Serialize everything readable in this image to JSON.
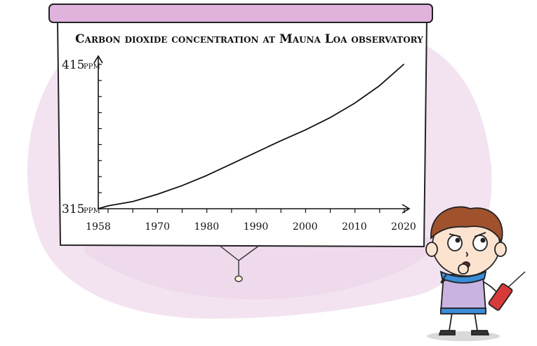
{
  "chart_data": {
    "type": "line",
    "title": "Carbon dioxide concentration at Mauna Loa observatory",
    "x_ticks": [
      "1958",
      "1970",
      "1980",
      "1990",
      "2000",
      "2010",
      "2020"
    ],
    "y_ticks": [
      {
        "value": "415",
        "unit": "ppm"
      },
      {
        "value": "315",
        "unit": "ppm"
      }
    ],
    "xlim": [
      1958,
      2021
    ],
    "ylim": [
      315,
      415
    ],
    "grid": false,
    "series": [
      {
        "color": "#111111",
        "x": [
          1958,
          1960,
          1965,
          1970,
          1975,
          1980,
          1985,
          1990,
          1995,
          2000,
          2005,
          2010,
          2015,
          2020
        ],
        "y": [
          315,
          317,
          320,
          325,
          331,
          338,
          346,
          354,
          362,
          369.5,
          378,
          388,
          400,
          415
        ]
      }
    ]
  },
  "colors": {
    "banner": "#dfb3dc",
    "blob": "#f3e3f1",
    "screen": "#ffffff"
  },
  "illustration": {
    "character": "cartoon-boy-holding-remote-icon"
  }
}
